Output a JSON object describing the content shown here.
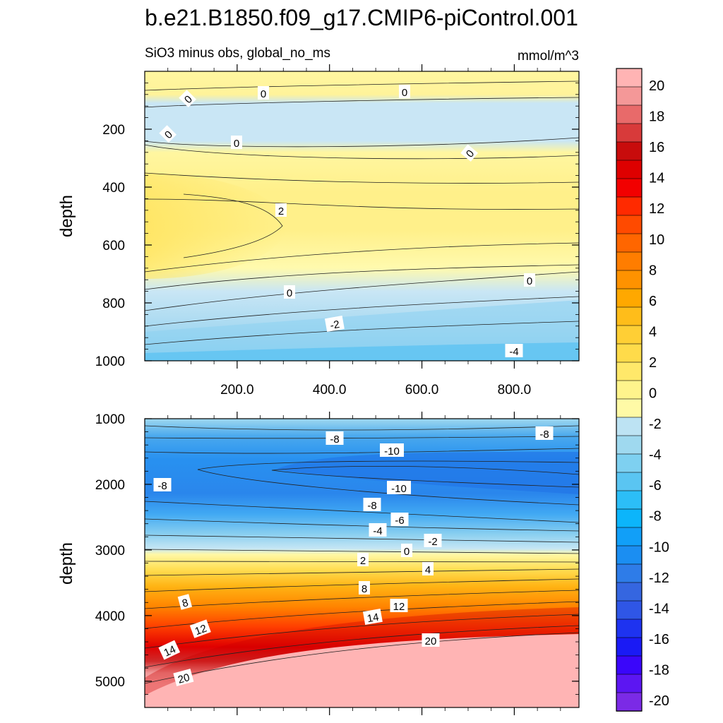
{
  "chart_data": {
    "type": "heatmap",
    "title": "b.e21.B1850.f09_g17.CMIP6-piControl.001",
    "subtitle_left": "SiO3 minus obs, global_no_ms",
    "units": "mmol/m^3",
    "colorbar": {
      "levels": [
        -20,
        -18,
        -16,
        -14,
        -12,
        -10,
        -8,
        -6,
        -4,
        -2,
        0,
        2,
        4,
        6,
        8,
        10,
        12,
        14,
        16,
        18,
        20
      ],
      "tick_labels": [
        "-20",
        "-18",
        "-16",
        "-14",
        "-12",
        "-10",
        "-8",
        "-6",
        "-4",
        "-2",
        "0",
        "2",
        "4",
        "6",
        "8",
        "10",
        "12",
        "14",
        "16",
        "18",
        "20"
      ],
      "colors": [
        "#7b2ae6",
        "#5c16f2",
        "#3a06fa",
        "#1a1af5",
        "#1e33f0",
        "#2f56e6",
        "#3566e0",
        "#2e7ce8",
        "#1b8ef2",
        "#119ff8",
        "#0cb5fb",
        "#2cbef7",
        "#5ac5f2",
        "#7ed0f0",
        "#9fd9ef",
        "#bde3f3",
        "#fffaa6",
        "#fff48c",
        "#ffe86a",
        "#ffdb4a",
        "#ffcf35",
        "#ffbd1a",
        "#ffa800",
        "#ff9200",
        "#ff7d00",
        "#ff6600",
        "#ff4a00",
        "#ff2a00",
        "#f20000",
        "#de0000",
        "#c80c0c",
        "#d83a3a",
        "#e86a6a",
        "#f49898",
        "#ffb4b4"
      ]
    },
    "panels": [
      {
        "name": "upper",
        "ylabel": "depth",
        "ylim": [
          0,
          1000
        ],
        "yticks": [
          200,
          400,
          600,
          800,
          1000
        ],
        "ytick_labels": [
          "200",
          "400",
          "600",
          "800",
          "1000"
        ],
        "xlim": [
          0,
          940
        ],
        "xticks": [
          200,
          400,
          600,
          800
        ],
        "xtick_labels": [
          "200.0",
          "400.0",
          "600.0",
          "800.0"
        ],
        "contour_labels": [
          "0",
          "0",
          "0",
          "0",
          "0",
          "0",
          "2",
          "0",
          "0",
          "-2",
          "-4"
        ]
      },
      {
        "name": "lower",
        "ylabel": "depth",
        "ylim": [
          1000,
          5400
        ],
        "yticks": [
          1000,
          2000,
          3000,
          4000,
          5000
        ],
        "ytick_labels": [
          "1000",
          "2000",
          "3000",
          "4000",
          "5000"
        ],
        "xlim": [
          0,
          940
        ],
        "contour_labels": [
          "-8",
          "-8",
          "-10",
          "-8",
          "-10",
          "-8",
          "-6",
          "-4",
          "-2",
          "0",
          "2",
          "4",
          "8",
          "8",
          "12",
          "12",
          "14",
          "14",
          "20",
          "20"
        ]
      }
    ]
  }
}
